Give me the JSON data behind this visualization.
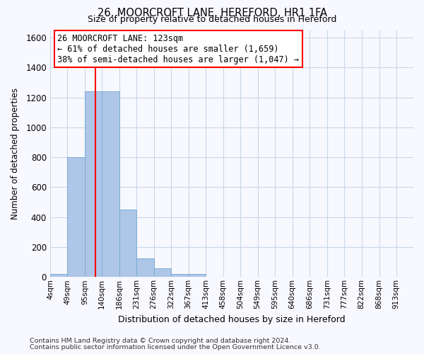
{
  "title": "26, MOORCROFT LANE, HEREFORD, HR1 1FA",
  "subtitle": "Size of property relative to detached houses in Hereford",
  "xlabel": "Distribution of detached houses by size in Hereford",
  "ylabel": "Number of detached properties",
  "bin_labels": [
    "4sqm",
    "49sqm",
    "95sqm",
    "140sqm",
    "186sqm",
    "231sqm",
    "276sqm",
    "322sqm",
    "367sqm",
    "413sqm",
    "458sqm",
    "504sqm",
    "549sqm",
    "595sqm",
    "640sqm",
    "686sqm",
    "731sqm",
    "777sqm",
    "822sqm",
    "868sqm",
    "913sqm"
  ],
  "bar_values": [
    20,
    800,
    1240,
    1240,
    450,
    125,
    60,
    20,
    20,
    0,
    0,
    0,
    0,
    0,
    0,
    0,
    0,
    0,
    0,
    0,
    0
  ],
  "bar_color": "#aec6e8",
  "bar_edge_color": "#7aadd4",
  "vline_x": 123,
  "vline_color": "red",
  "ylim": [
    0,
    1650
  ],
  "yticks": [
    0,
    200,
    400,
    600,
    800,
    1000,
    1200,
    1400,
    1600
  ],
  "annotation_title": "26 MOORCROFT LANE: 123sqm",
  "annotation_line1": "← 61% of detached houses are smaller (1,659)",
  "annotation_line2": "38% of semi-detached houses are larger (1,047) →",
  "footer1": "Contains HM Land Registry data © Crown copyright and database right 2024.",
  "footer2": "Contains public sector information licensed under the Open Government Licence v3.0.",
  "bg_color": "#f8f8ff",
  "grid_color": "#c8d8e8",
  "bin_edges": [
    4,
    49,
    95,
    140,
    186,
    231,
    276,
    322,
    367,
    413,
    458,
    504,
    549,
    595,
    640,
    686,
    731,
    777,
    822,
    868,
    913,
    958
  ]
}
